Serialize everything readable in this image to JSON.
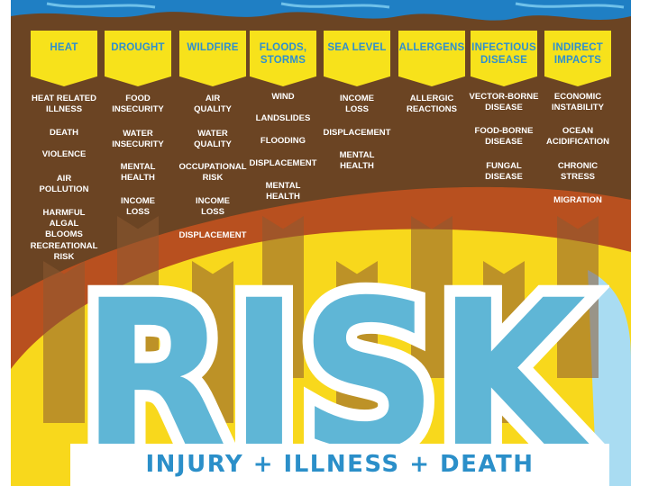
{
  "colors": {
    "background": "#6b4423",
    "banner": "#f7e21b",
    "banner_text": "#2e8fcf",
    "item_text": "#ffffff",
    "risk_fill": "#5fb6d6",
    "water": "#1f7fc4",
    "yellow": "#f8d81c",
    "orange": "#c6521f"
  },
  "columns": [
    {
      "title": "HEAT",
      "items": [
        "HEAT RELATED\nILLNESS",
        "DEATH",
        "VIOLENCE",
        "AIR\nPOLLUTION",
        "HARMFUL ALGAL\nBLOOMS",
        "RECREATIONAL\nRISK"
      ]
    },
    {
      "title": "DROUGHT",
      "items": [
        "FOOD\nINSECURITY",
        "WATER\nINSECURITY",
        "MENTAL\nHEALTH",
        "INCOME\nLOSS"
      ]
    },
    {
      "title": "WILDFIRE",
      "items": [
        "AIR\nQUALITY",
        "WATER\nQUALITY",
        "OCCUPATIONAL\nRISK",
        "INCOME\nLOSS",
        "DISPLACEMENT"
      ]
    },
    {
      "title": "FLOODS,\nSTORMS",
      "items": [
        "WIND",
        "LANDSLIDES",
        "FLOODING",
        "DISPLACEMENT",
        "MENTAL\nHEALTH"
      ]
    },
    {
      "title": "SEA LEVEL",
      "items": [
        "INCOME\nLOSS",
        "DISPLACEMENT",
        "MENTAL\nHEALTH"
      ]
    },
    {
      "title": "ALLERGENS",
      "items": [
        "ALLERGIC\nREACTIONS"
      ]
    },
    {
      "title": "INFECTIOUS\nDISEASE",
      "items": [
        "VECTOR-BORNE\nDISEASE",
        "FOOD-BORNE\nDISEASE",
        "FUNGAL\nDISEASE"
      ]
    },
    {
      "title": "INDIRECT\nIMPACTS",
      "items": [
        "ECONOMIC\nINSTABILITY",
        "OCEAN\nACIDIFICATION",
        "CHRONIC\nSTRESS",
        "MIGRATION"
      ]
    }
  ],
  "risk_word": "RISK",
  "tagline": "INJURY  +  ILLNESS  +  DEATH"
}
